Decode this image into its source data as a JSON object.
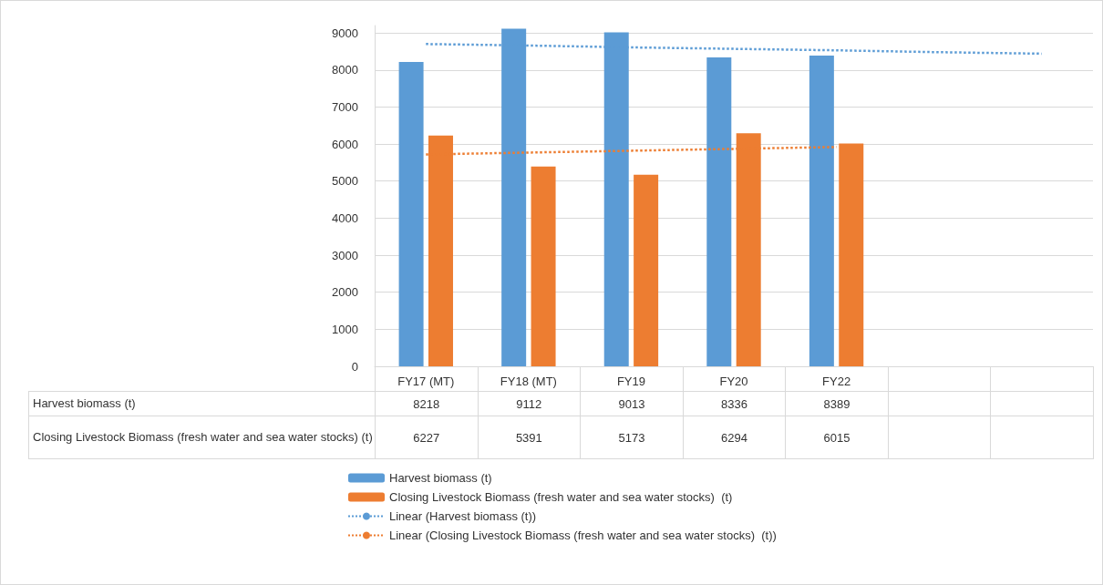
{
  "chart_data": {
    "type": "bar",
    "categories": [
      "FY17 (MT)",
      "FY18 (MT)",
      "FY19",
      "FY20",
      "FY22",
      null,
      null
    ],
    "series": [
      {
        "name": "Harvest biomass (t)",
        "color": "#5b9bd5",
        "values": [
          8218,
          9112,
          9013,
          8336,
          8389,
          null,
          null
        ],
        "value_labels": [
          "8218",
          "9112",
          "9013",
          "8336",
          "8389",
          null,
          null
        ]
      },
      {
        "name": "Closing Livestock Biomass (fresh water and sea water stocks)  (t)",
        "color": "#ed7d31",
        "values": [
          6227,
          5391,
          5173,
          6294,
          6015,
          null,
          null
        ],
        "value_labels": [
          "6227",
          "5391",
          "5173",
          "6294",
          "6015",
          null,
          null
        ]
      },
      {
        "name": "Linear (Harvest biomass (t))",
        "type": "line",
        "line_style": "dotted",
        "marker": "none",
        "color": "#5b9bd5",
        "values": [
          8700,
          8660,
          8610,
          8570,
          8530,
          8480,
          8440
        ]
      },
      {
        "name": "Linear (Closing Livestock Biomass (fresh water and sea water stocks)  (t))",
        "type": "line",
        "line_style": "dotted",
        "marker": "none",
        "color": "#ed7d31",
        "values": [
          5720,
          5770,
          5820,
          5870,
          5920,
          null,
          null
        ]
      }
    ],
    "ylim": [
      0,
      9200
    ],
    "yticks": [
      0,
      1000,
      2000,
      3000,
      4000,
      5000,
      6000,
      7000,
      8000,
      9000
    ],
    "grid": "y",
    "legend": "bottom"
  }
}
